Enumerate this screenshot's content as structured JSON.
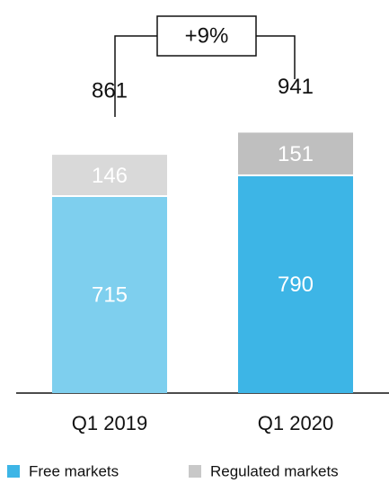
{
  "chart_data": {
    "type": "stacked_bar",
    "categories": [
      "Q1 2019",
      "Q1 2020"
    ],
    "series": [
      {
        "name": "Free markets",
        "color": "#3db5e6",
        "point_colors": [
          "#7ecfee",
          "#3db5e6"
        ],
        "values": [
          715,
          790
        ]
      },
      {
        "name": "Regulated markets",
        "color": "#c8c8c8",
        "point_colors": [
          "#d9d9d9",
          "#bfbfbf"
        ],
        "values": [
          146,
          151
        ]
      }
    ],
    "totals": [
      861,
      941
    ],
    "annotation": "+9%"
  }
}
